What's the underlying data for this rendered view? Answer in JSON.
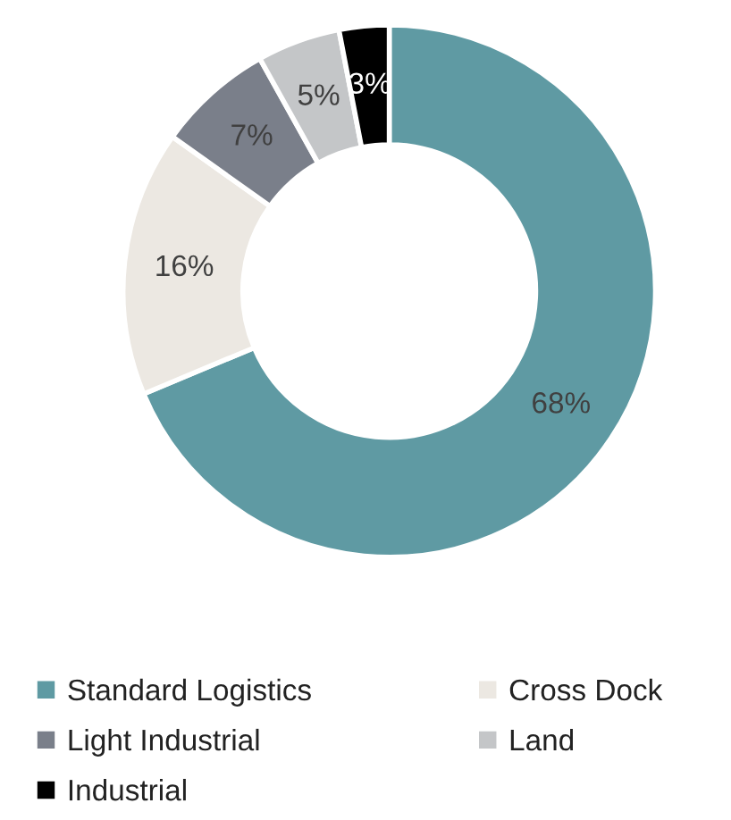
{
  "chart_data": {
    "type": "donut",
    "categories": [
      "Standard Logistics",
      "Cross Dock",
      "Light Industrial",
      "Land",
      "Industrial"
    ],
    "values": [
      68,
      16,
      7,
      5,
      3
    ],
    "colors": [
      "#5f9aa3",
      "#ece8e2",
      "#7a7f8a",
      "#c4c6c8",
      "#000000"
    ],
    "value_labels": [
      "68%",
      "16%",
      "7%",
      "5%",
      "3%"
    ],
    "legend": "bottom"
  }
}
